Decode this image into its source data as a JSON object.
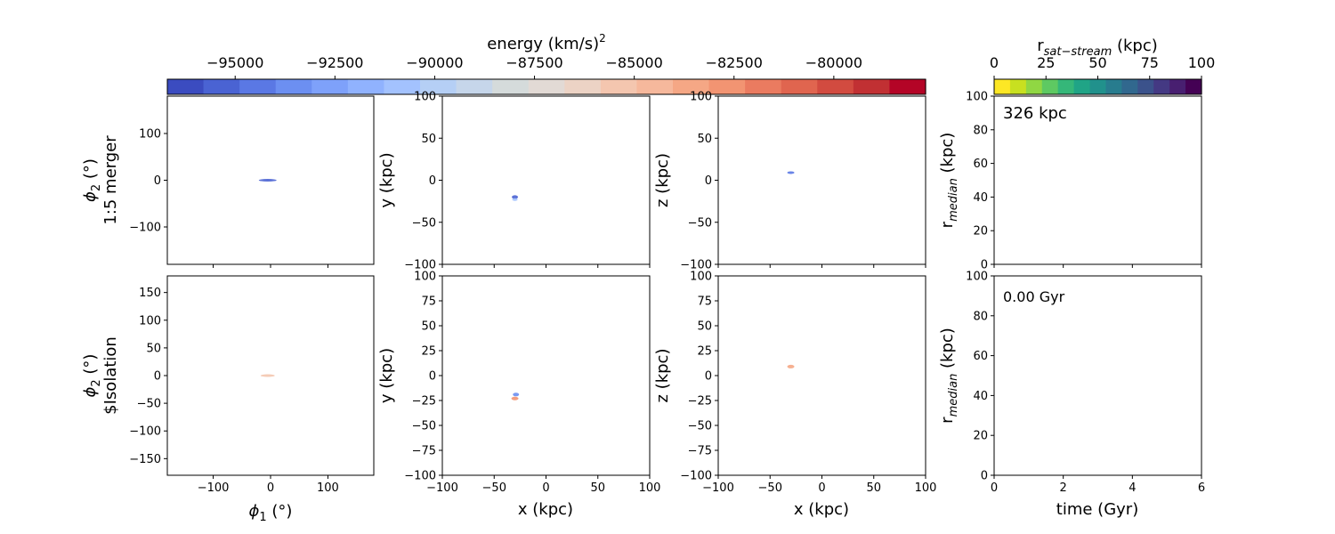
{
  "colorbars": {
    "energy": {
      "label": "energy (km/s)",
      "label_sup": "2",
      "ticks": [
        -95000,
        -92500,
        -90000,
        -87500,
        -85000,
        -82500,
        -80000
      ],
      "tick_labels": [
        "−95000",
        "−92500",
        "−90000",
        "−87500",
        "−85000",
        "−82500",
        "−80000"
      ],
      "range": [
        -96700,
        -77700
      ],
      "colormap": "coolwarm",
      "colors": [
        "#3b4cc0",
        "#4a63d3",
        "#5a78e4",
        "#6c8ff1",
        "#7ea1fa",
        "#90b2fe",
        "#a3c2fe",
        "#b5cff5",
        "#c6d6ea",
        "#d5dbdb",
        "#e2dad5",
        "#ecd3c5",
        "#f4c6af",
        "#f6b89c",
        "#f5a785",
        "#f29472",
        "#ea7b60",
        "#e0654f",
        "#d24b40",
        "#c13033",
        "#b40426"
      ]
    },
    "rsat": {
      "label_main": "r",
      "label_sub": "sat−stream",
      "label_unit": " (kpc)",
      "ticks": [
        0,
        25,
        50,
        75,
        100
      ],
      "tick_labels": [
        "0",
        "25",
        "50",
        "75",
        "100"
      ],
      "range": [
        0,
        100
      ],
      "colormap": "viridis_r",
      "colors": [
        "#fde725",
        "#c8e020",
        "#90d743",
        "#5ec962",
        "#35b779",
        "#20a486",
        "#21918c",
        "#287c8e",
        "#31688e",
        "#3b528b",
        "#443983",
        "#481f70",
        "#440154"
      ]
    }
  },
  "rows": [
    {
      "label_top": "ϕ",
      "label_sub": "2",
      "label_unit": " (°)",
      "row_name": "1:5 merger"
    },
    {
      "label_top": "ϕ",
      "label_sub": "2",
      "label_unit": " (°)",
      "row_name": "$Isolation"
    }
  ],
  "axes": {
    "phi_x": {
      "label_main": "ϕ",
      "label_sub": "1",
      "label_unit": " (°)",
      "ticks": [
        -100,
        0,
        100
      ],
      "tick_labels": [
        "−100",
        "0",
        "100"
      ],
      "range": [
        -180,
        180
      ]
    },
    "phi_y_top": {
      "ticks": [
        -100,
        0,
        100
      ],
      "tick_labels": [
        "−100",
        "0",
        "100"
      ],
      "range": [
        -180,
        180
      ]
    },
    "phi_y_bottom": {
      "ticks": [
        -150,
        -100,
        -50,
        0,
        50,
        100,
        150
      ],
      "tick_labels": [
        "−150",
        "−100",
        "−50",
        "0",
        "50",
        "100",
        "150"
      ],
      "range": [
        -180,
        180
      ]
    },
    "xyz_top": {
      "ticks": [
        -100,
        -50,
        0,
        50,
        100
      ],
      "tick_labels": [
        "−100",
        "−50",
        "0",
        "50",
        "100"
      ],
      "range": [
        -100,
        100
      ]
    },
    "xyz_bottom": {
      "ticks": [
        -100,
        -75,
        -50,
        -25,
        0,
        25,
        50,
        75,
        100
      ],
      "tick_labels": [
        "−100",
        "−75",
        "−50",
        "−25",
        "0",
        "25",
        "50",
        "75",
        "100"
      ],
      "range": [
        -100,
        100
      ]
    },
    "x_bottom": {
      "ticks": [
        -100,
        -50,
        0,
        50,
        100
      ],
      "tick_labels": [
        "−100",
        "−50",
        "0",
        "50",
        "100"
      ],
      "range": [
        -100,
        100
      ],
      "label": "x (kpc)"
    },
    "y_label": "y (kpc)",
    "z_label": "z (kpc)",
    "rmed_y": {
      "label_main": "r",
      "label_sub": "median",
      "label_unit": " (kpc)",
      "ticks": [
        0,
        20,
        40,
        60,
        80,
        100
      ],
      "tick_labels": [
        "0",
        "20",
        "40",
        "60",
        "80",
        "100"
      ],
      "range": [
        0,
        100
      ]
    },
    "time_x": {
      "label": "time (Gyr)",
      "ticks": [
        0,
        2,
        4,
        6
      ],
      "tick_labels": [
        "0",
        "2",
        "4",
        "6"
      ],
      "range": [
        0,
        6
      ]
    }
  },
  "annotations": {
    "distance": "326 kpc",
    "time": "0.00 Gyr"
  },
  "chart_data": [
    {
      "type": "scatter",
      "panel": "phi1-phi2 (1:5 merger)",
      "xlabel": "ϕ1 (°)",
      "ylabel": "ϕ2 (°)",
      "xlim": [
        -180,
        180
      ],
      "ylim": [
        -180,
        180
      ],
      "points": [
        {
          "x": -5,
          "y": 0,
          "w": 20,
          "h": 3,
          "color": "#4a63d3"
        }
      ]
    },
    {
      "type": "scatter",
      "panel": "x-y (1:5 merger)",
      "xlabel": "x (kpc)",
      "ylabel": "y (kpc)",
      "xlim": [
        -100,
        100
      ],
      "ylim": [
        -100,
        100
      ],
      "points": [
        {
          "x": -30,
          "y": -20,
          "w": 7,
          "h": 4,
          "color": "#4a63d3"
        },
        {
          "x": -30,
          "y": -23,
          "w": 6,
          "h": 3,
          "color": "#a3c2fe"
        }
      ]
    },
    {
      "type": "scatter",
      "panel": "x-z (1:5 merger)",
      "xlabel": "x (kpc)",
      "ylabel": "z (kpc)",
      "xlim": [
        -100,
        100
      ],
      "ylim": [
        -100,
        100
      ],
      "points": [
        {
          "x": -30,
          "y": 9,
          "w": 8,
          "h": 3,
          "color": "#5a78e4"
        }
      ]
    },
    {
      "type": "line",
      "panel": "time-rmedian (1:5 merger)",
      "xlabel": "time (Gyr)",
      "ylabel": "r median (kpc)",
      "xlim": [
        0,
        6
      ],
      "ylim": [
        0,
        100
      ],
      "series": []
    },
    {
      "type": "scatter",
      "panel": "phi1-phi2 (Isolation)",
      "xlabel": "ϕ1 (°)",
      "ylabel": "ϕ2 (°)",
      "xlim": [
        -180,
        180
      ],
      "ylim": [
        -180,
        180
      ],
      "points": [
        {
          "x": -5,
          "y": 0,
          "w": 16,
          "h": 3,
          "color": "#f4c6af"
        }
      ]
    },
    {
      "type": "scatter",
      "panel": "x-y (Isolation)",
      "xlabel": "x (kpc)",
      "ylabel": "y (kpc)",
      "xlim": [
        -100,
        100
      ],
      "ylim": [
        -100,
        100
      ],
      "points": [
        {
          "x": -29,
          "y": -19,
          "w": 7,
          "h": 4,
          "color": "#6c8ff1"
        },
        {
          "x": -30,
          "y": -23,
          "w": 8,
          "h": 4,
          "color": "#f29472"
        }
      ]
    },
    {
      "type": "scatter",
      "panel": "x-z (Isolation)",
      "xlabel": "x (kpc)",
      "ylabel": "z (kpc)",
      "xlim": [
        -100,
        100
      ],
      "ylim": [
        -100,
        100
      ],
      "points": [
        {
          "x": -30,
          "y": 9,
          "w": 8,
          "h": 4,
          "color": "#f5a785"
        }
      ]
    },
    {
      "type": "line",
      "panel": "time-rmedian (Isolation)",
      "xlabel": "time (Gyr)",
      "ylabel": "r median (kpc)",
      "xlim": [
        0,
        6
      ],
      "ylim": [
        0,
        100
      ],
      "series": []
    }
  ]
}
